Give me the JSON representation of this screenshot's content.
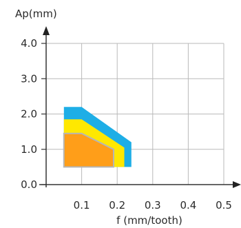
{
  "chart_data": {
    "type": "area",
    "xlabel": "f (mm/tooth)",
    "ylabel": "Ap(mm)",
    "xlim": [
      0,
      0.5
    ],
    "ylim": [
      0,
      4.0
    ],
    "x_ticks": [
      "0.1",
      "0.2",
      "0.3",
      "0.4",
      "0.5"
    ],
    "y_ticks": [
      "0.0",
      "1.0",
      "2.0",
      "3.0",
      "4.0"
    ],
    "grid": true,
    "regions": [
      {
        "color": "#1eaee6",
        "points": [
          [
            0.05,
            0.5
          ],
          [
            0.05,
            2.2
          ],
          [
            0.1,
            2.2
          ],
          [
            0.24,
            1.2
          ],
          [
            0.24,
            0.5
          ]
        ]
      },
      {
        "color": "#ffe800",
        "points": [
          [
            0.05,
            0.5
          ],
          [
            0.05,
            1.85
          ],
          [
            0.1,
            1.85
          ],
          [
            0.22,
            1.05
          ],
          [
            0.22,
            0.5
          ]
        ]
      },
      {
        "color": "#ff9e19",
        "points": [
          [
            0.05,
            0.5
          ],
          [
            0.05,
            1.45
          ],
          [
            0.1,
            1.45
          ],
          [
            0.19,
            1.0
          ],
          [
            0.19,
            0.5
          ]
        ]
      }
    ]
  }
}
